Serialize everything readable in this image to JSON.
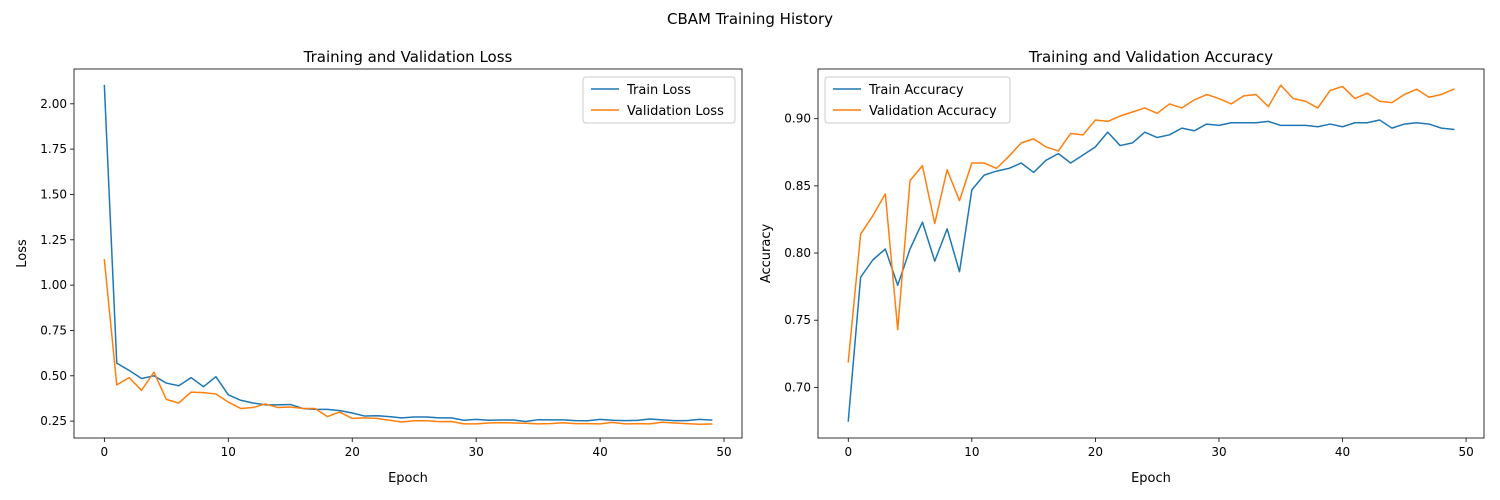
{
  "figure": {
    "title": "CBAM Training History"
  },
  "chart_data": [
    {
      "type": "line",
      "title": "Training and Validation Loss",
      "xlabel": "Epoch",
      "ylabel": "Loss",
      "xlim": [
        -2.45,
        51.45
      ],
      "ylim": [
        0.157,
        2.192
      ],
      "xticks": [
        0,
        10,
        20,
        30,
        40,
        50
      ],
      "xtick_labels": [
        "0",
        "10",
        "20",
        "30",
        "40",
        "50"
      ],
      "yticks": [
        0.25,
        0.5,
        0.75,
        1.0,
        1.25,
        1.5,
        1.75,
        2.0
      ],
      "ytick_labels": [
        "0.25",
        "0.50",
        "0.75",
        "1.00",
        "1.25",
        "1.50",
        "1.75",
        "2.00"
      ],
      "grid": false,
      "legend_position": "top-right",
      "x": [
        0,
        1,
        2,
        3,
        4,
        5,
        6,
        7,
        8,
        9,
        10,
        11,
        12,
        13,
        14,
        15,
        16,
        17,
        18,
        19,
        20,
        21,
        22,
        23,
        24,
        25,
        26,
        27,
        28,
        29,
        30,
        31,
        32,
        33,
        34,
        35,
        36,
        37,
        38,
        39,
        40,
        41,
        42,
        43,
        44,
        45,
        46,
        47,
        48,
        49
      ],
      "series": [
        {
          "name": "Train Loss",
          "color": "#1f77b4",
          "values": [
            2.1,
            0.57,
            0.53,
            0.485,
            0.5,
            0.46,
            0.445,
            0.49,
            0.44,
            0.495,
            0.395,
            0.365,
            0.35,
            0.34,
            0.34,
            0.342,
            0.32,
            0.315,
            0.315,
            0.308,
            0.295,
            0.278,
            0.28,
            0.275,
            0.268,
            0.273,
            0.273,
            0.268,
            0.268,
            0.255,
            0.26,
            0.255,
            0.256,
            0.256,
            0.248,
            0.258,
            0.257,
            0.257,
            0.253,
            0.252,
            0.26,
            0.255,
            0.253,
            0.254,
            0.262,
            0.257,
            0.253,
            0.253,
            0.26,
            0.256
          ]
        },
        {
          "name": "Validation Loss",
          "color": "#ff7f0e",
          "values": [
            1.14,
            0.45,
            0.49,
            0.42,
            0.52,
            0.37,
            0.35,
            0.41,
            0.407,
            0.4,
            0.355,
            0.32,
            0.325,
            0.345,
            0.325,
            0.328,
            0.32,
            0.32,
            0.275,
            0.3,
            0.265,
            0.268,
            0.265,
            0.255,
            0.245,
            0.252,
            0.252,
            0.247,
            0.248,
            0.235,
            0.235,
            0.24,
            0.242,
            0.24,
            0.238,
            0.235,
            0.236,
            0.241,
            0.236,
            0.236,
            0.235,
            0.243,
            0.235,
            0.236,
            0.235,
            0.244,
            0.24,
            0.236,
            0.233,
            0.234
          ]
        }
      ]
    },
    {
      "type": "line",
      "title": "Training and Validation Accuracy",
      "xlabel": "Epoch",
      "ylabel": "Accuracy",
      "xlim": [
        -2.45,
        51.45
      ],
      "ylim": [
        0.6623,
        0.937
      ],
      "xticks": [
        0,
        10,
        20,
        30,
        40,
        50
      ],
      "xtick_labels": [
        "0",
        "10",
        "20",
        "30",
        "40",
        "50"
      ],
      "yticks": [
        0.7,
        0.75,
        0.8,
        0.85,
        0.9
      ],
      "ytick_labels": [
        "0.70",
        "0.75",
        "0.80",
        "0.85",
        "0.90"
      ],
      "grid": false,
      "legend_position": "top-left",
      "x": [
        0,
        1,
        2,
        3,
        4,
        5,
        6,
        7,
        8,
        9,
        10,
        11,
        12,
        13,
        14,
        15,
        16,
        17,
        18,
        19,
        20,
        21,
        22,
        23,
        24,
        25,
        26,
        27,
        28,
        29,
        30,
        31,
        32,
        33,
        34,
        35,
        36,
        37,
        38,
        39,
        40,
        41,
        42,
        43,
        44,
        45,
        46,
        47,
        48,
        49
      ],
      "series": [
        {
          "name": "Train Accuracy",
          "color": "#1f77b4",
          "values": [
            0.675,
            0.782,
            0.795,
            0.803,
            0.776,
            0.803,
            0.823,
            0.794,
            0.818,
            0.786,
            0.847,
            0.858,
            0.861,
            0.863,
            0.867,
            0.86,
            0.869,
            0.874,
            0.867,
            0.873,
            0.879,
            0.89,
            0.88,
            0.882,
            0.89,
            0.886,
            0.888,
            0.893,
            0.891,
            0.896,
            0.895,
            0.897,
            0.897,
            0.897,
            0.898,
            0.895,
            0.895,
            0.895,
            0.894,
            0.896,
            0.894,
            0.897,
            0.897,
            0.899,
            0.893,
            0.896,
            0.897,
            0.896,
            0.893,
            0.892
          ]
        },
        {
          "name": "Validation Accuracy",
          "color": "#ff7f0e",
          "values": [
            0.719,
            0.814,
            0.828,
            0.844,
            0.743,
            0.854,
            0.865,
            0.822,
            0.862,
            0.839,
            0.867,
            0.867,
            0.863,
            0.872,
            0.882,
            0.885,
            0.879,
            0.876,
            0.889,
            0.888,
            0.899,
            0.898,
            0.902,
            0.905,
            0.908,
            0.904,
            0.911,
            0.908,
            0.914,
            0.918,
            0.915,
            0.911,
            0.917,
            0.918,
            0.909,
            0.925,
            0.915,
            0.913,
            0.908,
            0.921,
            0.924,
            0.915,
            0.919,
            0.913,
            0.912,
            0.918,
            0.922,
            0.916,
            0.918,
            0.922
          ]
        }
      ]
    }
  ]
}
